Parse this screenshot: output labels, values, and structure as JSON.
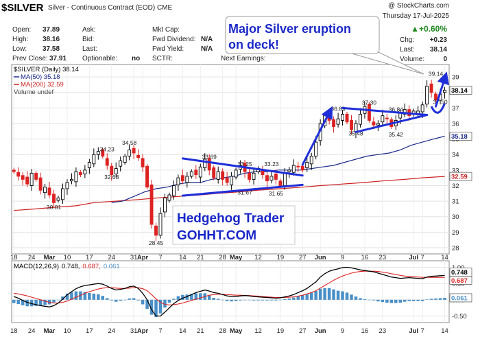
{
  "header": {
    "symbol": "$SILVER",
    "description": "Silver - Continuous Contract (EOD)",
    "exchange": "CME",
    "watermark": "@ StockCharts.com",
    "date": "Thursday 17-Jul-2025",
    "change_pct": "▲+0.60%",
    "chg_label": "Chg:",
    "chg_value": "+0.23",
    "last_label": "Last:",
    "last_value": "38.14",
    "volume_label": "Volume:",
    "volume_value": "0"
  },
  "stats": {
    "open_label": "Open:",
    "open": "37.89",
    "high_label": "High:",
    "high": "38.16",
    "low_label": "Low:",
    "low": "37.58",
    "prev_label": "Prev Close:",
    "prev": "37.91",
    "ask_label": "Ask:",
    "bid_label": "Bid:",
    "last_label": "Last:",
    "optionable_label": "Optionable:",
    "optionable": "no",
    "mktcap_label": "Mkt Cap:",
    "fwddiv_label": "Fwd Dividend:",
    "fwddiv": "N/A",
    "fwdyield_label": "Fwd Yield:",
    "fwdyield": "N/A",
    "sctr_label": "SCTR:",
    "next_earnings_label": "Next Earnings:"
  },
  "legend": {
    "main": "$SILVER (Daily) 38.14",
    "ma50": "MA(50) 35.18",
    "ma200": "MA(200) 32.59",
    "volume": "Volume undef"
  },
  "annotations": {
    "callout_line1": "Major Silver eruption",
    "callout_line2": "on deck!",
    "promo_line1": "Hedgehog Trader",
    "promo_line2": "GOHHT.COM"
  },
  "macd_legend": {
    "label": "MACD(12,26,9)",
    "v1": "0.748,",
    "v2": "0.687,",
    "v3": "0.061"
  },
  "colors": {
    "up": "#2222bb",
    "down": "#dd2222",
    "ma50": "#1a2a8a",
    "ma200": "#cc2020",
    "trend": "#1f2fd8",
    "macd_line": "#000000",
    "signal": "#dd2222",
    "hist": "#4a90c8",
    "panel_bg": "#ffffff",
    "grid": "#dddddd",
    "pos_change": "#228822"
  },
  "chart_data": [
    {
      "type": "candlestick",
      "title": "$SILVER (Daily) 38.14",
      "y_ticks": [
        28,
        29,
        30,
        31,
        32,
        33,
        34,
        35,
        36,
        37,
        38,
        39
      ],
      "ylim": [
        27.6,
        39.8
      ],
      "x_labels": [
        {
          "d": 0,
          "label": "18"
        },
        {
          "d": 4,
          "label": "24"
        },
        {
          "d": 8,
          "label": "Mar"
        },
        {
          "d": 12,
          "label": "10"
        },
        {
          "d": 17,
          "label": "17"
        },
        {
          "d": 22,
          "label": "24"
        },
        {
          "d": 27,
          "label": "31"
        },
        {
          "d": 29,
          "label": "Apr"
        },
        {
          "d": 33,
          "label": "7"
        },
        {
          "d": 38,
          "label": "14"
        },
        {
          "d": 42,
          "label": "21"
        },
        {
          "d": 47,
          "label": "28"
        },
        {
          "d": 50,
          "label": "May"
        },
        {
          "d": 55,
          "label": "12"
        },
        {
          "d": 60,
          "label": "19"
        },
        {
          "d": 65,
          "label": "27"
        },
        {
          "d": 69,
          "label": "Jun"
        },
        {
          "d": 74,
          "label": "9"
        },
        {
          "d": 79,
          "label": "16"
        },
        {
          "d": 83,
          "label": "23"
        },
        {
          "d": 90,
          "label": "Jul"
        },
        {
          "d": 92,
          "label": "7"
        },
        {
          "d": 97,
          "label": "14"
        }
      ],
      "closes": [
        32.9,
        32.6,
        32.4,
        32.1,
        32.8,
        32.4,
        31.7,
        31.9,
        31.4,
        30.9,
        31.2,
        31.8,
        32.2,
        32.4,
        32.9,
        32.7,
        33.0,
        33.5,
        34.0,
        34.2,
        33.9,
        33.3,
        32.7,
        33.1,
        33.6,
        33.9,
        34.3,
        34.1,
        33.8,
        33.2,
        31.9,
        29.5,
        28.8,
        30.2,
        31.2,
        31.4,
        32.0,
        32.5,
        32.3,
        32.6,
        32.9,
        32.7,
        33.2,
        33.7,
        33.0,
        32.5,
        32.9,
        32.4,
        32.2,
        32.6,
        33.0,
        33.3,
        32.9,
        32.4,
        32.8,
        33.1,
        32.7,
        32.3,
        32.6,
        32.4,
        32.0,
        32.8,
        33.0,
        33.3,
        33.2,
        33.0,
        33.5,
        33.9,
        34.8,
        36.0,
        36.5,
        36.2,
        35.8,
        36.3,
        36.6,
        36.1,
        35.6,
        36.0,
        36.6,
        37.1,
        36.2,
        35.9,
        36.0,
        36.5,
        36.3,
        35.8,
        36.2,
        36.7,
        36.9,
        36.5,
        36.8,
        36.8,
        37.2,
        38.4,
        38.0,
        37.5,
        37.9,
        38.14
      ],
      "ma50": {
        "start": 22,
        "values": [
          30.9,
          31.0,
          31.3,
          31.6,
          31.8,
          31.9,
          32.1,
          32.2,
          32.2,
          32.4,
          32.5,
          32.6,
          32.8,
          32.9,
          32.9,
          33.0,
          33.0,
          33.0,
          33.1,
          33.2,
          33.3,
          33.5,
          33.7,
          33.9,
          34.0,
          34.1,
          34.3,
          34.6,
          34.8,
          35.0,
          35.18
        ]
      },
      "ma200": {
        "values": [
          30.4,
          30.5,
          30.6,
          30.7,
          30.9,
          31.0,
          31.1,
          31.2,
          31.3,
          31.4,
          31.5,
          31.6,
          31.7,
          31.8,
          31.9,
          32.0,
          32.1,
          32.2,
          32.3,
          32.4,
          32.5,
          32.59
        ]
      },
      "value_labels": [
        "34.23",
        "34.58",
        "32.68",
        "30.81",
        "28.45",
        "33.69",
        "33.25",
        "33.23",
        "31.67",
        "31.65",
        "36.89",
        "37.30",
        "36.84",
        "35.48",
        "35.42",
        "39.14",
        "37.50"
      ],
      "last_value_tag": "38.14",
      "ma50_tag": "35.18",
      "ma200_tag": "32.59"
    },
    {
      "type": "line",
      "title": "MACD(12,26,9) 0.748, 0.687, 0.061",
      "y_ticks": [
        -0.5,
        0.0,
        0.5,
        1.0
      ],
      "y_tick_labels": [
        "-0.50",
        "0.00",
        "0.50",
        "1.00"
      ],
      "ylim": [
        -0.7,
        1.2
      ],
      "series": [
        {
          "name": "MACD(12,26,9)",
          "values": [
            0.1,
            0.05,
            -0.02,
            -0.08,
            -0.12,
            -0.15,
            -0.18,
            -0.2,
            -0.22,
            -0.18,
            -0.1,
            0.02,
            0.15,
            0.25,
            0.34,
            0.4,
            0.44,
            0.46,
            0.48,
            0.5,
            0.48,
            0.42,
            0.35,
            0.3,
            0.32,
            0.35,
            0.4,
            0.42,
            0.35,
            0.2,
            0.0,
            -0.3,
            -0.5,
            -0.5,
            -0.38,
            -0.25,
            -0.12,
            -0.02,
            0.05,
            0.1,
            0.16,
            0.22,
            0.26,
            0.3,
            0.27,
            0.22,
            0.2,
            0.16,
            0.12,
            0.1,
            0.1,
            0.12,
            0.13,
            0.12,
            0.1,
            0.09,
            0.08,
            0.07,
            0.06,
            0.05,
            0.06,
            0.09,
            0.12,
            0.16,
            0.22,
            0.28,
            0.35,
            0.45,
            0.55,
            0.7,
            0.8,
            0.88,
            0.92,
            0.95,
            0.99,
            1.0,
            0.98,
            0.95,
            0.92,
            0.9,
            0.88,
            0.86,
            0.82,
            0.78,
            0.74,
            0.7,
            0.68,
            0.66,
            0.67,
            0.68,
            0.67,
            0.66,
            0.65,
            0.7,
            0.72,
            0.73,
            0.74,
            0.748
          ]
        },
        {
          "name": "signal",
          "values": [
            0.2,
            0.18,
            0.15,
            0.12,
            0.08,
            0.04,
            0.0,
            -0.04,
            -0.08,
            -0.1,
            -0.1,
            -0.08,
            -0.04,
            0.02,
            0.08,
            0.14,
            0.2,
            0.25,
            0.29,
            0.33,
            0.36,
            0.37,
            0.37,
            0.36,
            0.35,
            0.35,
            0.36,
            0.37,
            0.37,
            0.34,
            0.28,
            0.16,
            0.03,
            -0.08,
            -0.14,
            -0.16,
            -0.15,
            -0.13,
            -0.1,
            -0.06,
            -0.02,
            0.02,
            0.06,
            0.1,
            0.14,
            0.16,
            0.17,
            0.17,
            0.16,
            0.15,
            0.14,
            0.14,
            0.13,
            0.13,
            0.12,
            0.11,
            0.1,
            0.09,
            0.08,
            0.07,
            0.07,
            0.07,
            0.08,
            0.09,
            0.11,
            0.14,
            0.18,
            0.22,
            0.28,
            0.36,
            0.44,
            0.52,
            0.6,
            0.67,
            0.73,
            0.78,
            0.82,
            0.85,
            0.87,
            0.88,
            0.88,
            0.88,
            0.87,
            0.85,
            0.83,
            0.8,
            0.78,
            0.75,
            0.73,
            0.72,
            0.71,
            0.7,
            0.69,
            0.69,
            0.69,
            0.69,
            0.69,
            0.687
          ]
        }
      ],
      "tags": [
        "0.748",
        "0.687",
        "0.061"
      ]
    }
  ]
}
